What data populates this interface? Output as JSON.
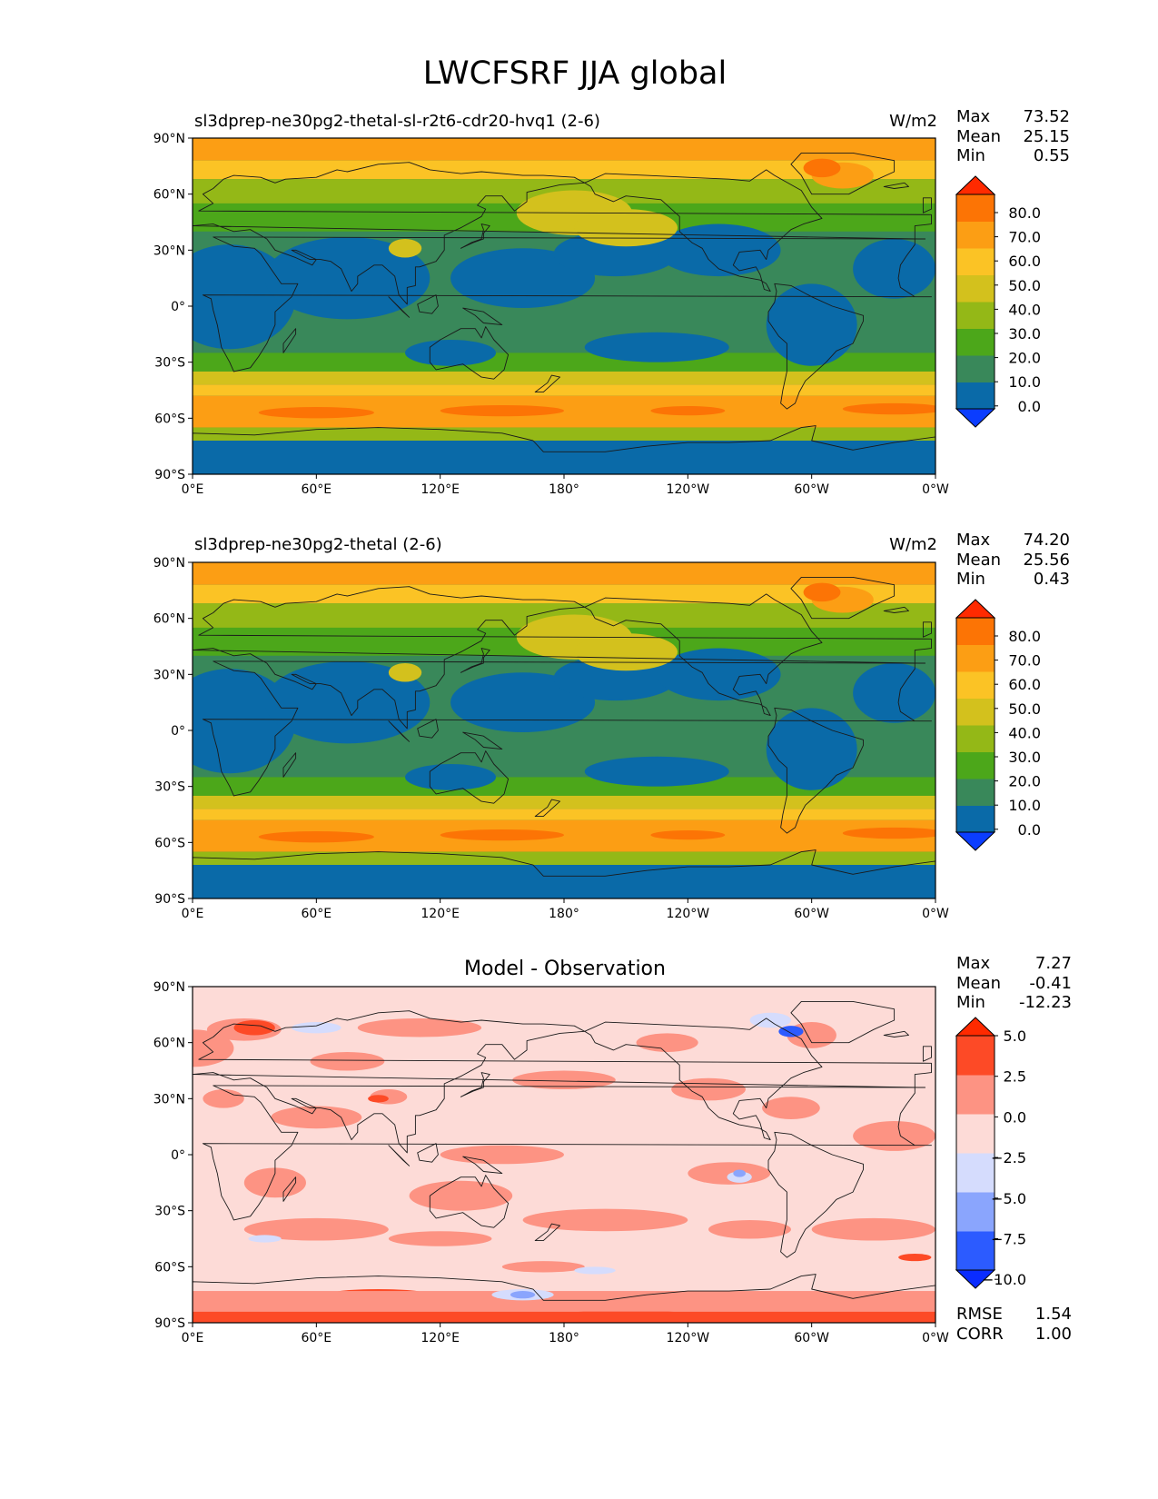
{
  "figure": {
    "title": "LWCFSRF JJA global"
  },
  "axes": {
    "lat_ticks": [
      "90°N",
      "60°N",
      "30°N",
      "0°",
      "30°S",
      "60°S",
      "90°S"
    ],
    "lon_ticks": [
      "0°E",
      "60°E",
      "120°E",
      "180°",
      "120°W",
      "60°W",
      "0°W"
    ]
  },
  "colors": {
    "abs_levels": [
      "#0b3dff",
      "#0a6aa8",
      "#39885a",
      "#4ca71a",
      "#94b817",
      "#d3c11d",
      "#fbc325",
      "#fc9e14",
      "#fc7405",
      "#ff2a00"
    ],
    "diff_levels": [
      "#0a2cff",
      "#2c5bff",
      "#8aa5fd",
      "#d5dcfd",
      "#fddbd7",
      "#fd9383",
      "#fd4a26",
      "#ff2a00"
    ]
  },
  "chart_data": [
    {
      "type": "heatmap",
      "title": "sl3dprep-ne30pg2-thetal-sl-r2t6-cdr20-hvq1 (2-6)",
      "units": "W/m2",
      "stats": {
        "max_label": "Max",
        "max": "73.52",
        "mean_label": "Mean",
        "mean": "25.15",
        "min_label": "Min",
        "min": "0.55"
      },
      "colorbar": {
        "ticks": [
          "80.0",
          "70.0",
          "60.0",
          "50.0",
          "40.0",
          "30.0",
          "20.0",
          "10.0",
          "0.0"
        ],
        "extend": "both"
      },
      "xlim": [
        0,
        360
      ],
      "ylim": [
        -90,
        90
      ]
    },
    {
      "type": "heatmap",
      "title": "sl3dprep-ne30pg2-thetal (2-6)",
      "units": "W/m2",
      "stats": {
        "max_label": "Max",
        "max": "74.20",
        "mean_label": "Mean",
        "mean": "25.56",
        "min_label": "Min",
        "min": "0.43"
      },
      "colorbar": {
        "ticks": [
          "80.0",
          "70.0",
          "60.0",
          "50.0",
          "40.0",
          "30.0",
          "20.0",
          "10.0",
          "0.0"
        ],
        "extend": "both"
      },
      "xlim": [
        0,
        360
      ],
      "ylim": [
        -90,
        90
      ]
    },
    {
      "type": "heatmap",
      "title": "Model - Observation",
      "units": "",
      "stats": {
        "max_label": "Max",
        "max": "7.27",
        "mean_label": "Mean",
        "mean": "-0.41",
        "min_label": "Min",
        "min": "-12.23",
        "rmse_label": "RMSE",
        "rmse": "1.54",
        "corr_label": "CORR",
        "corr": "1.00"
      },
      "colorbar": {
        "ticks": [
          "5.0",
          "2.5",
          "0.0",
          "−2.5",
          "−5.0",
          "−7.5",
          "−10.0"
        ],
        "extend": "both"
      },
      "xlim": [
        0,
        360
      ],
      "ylim": [
        -90,
        90
      ]
    }
  ]
}
